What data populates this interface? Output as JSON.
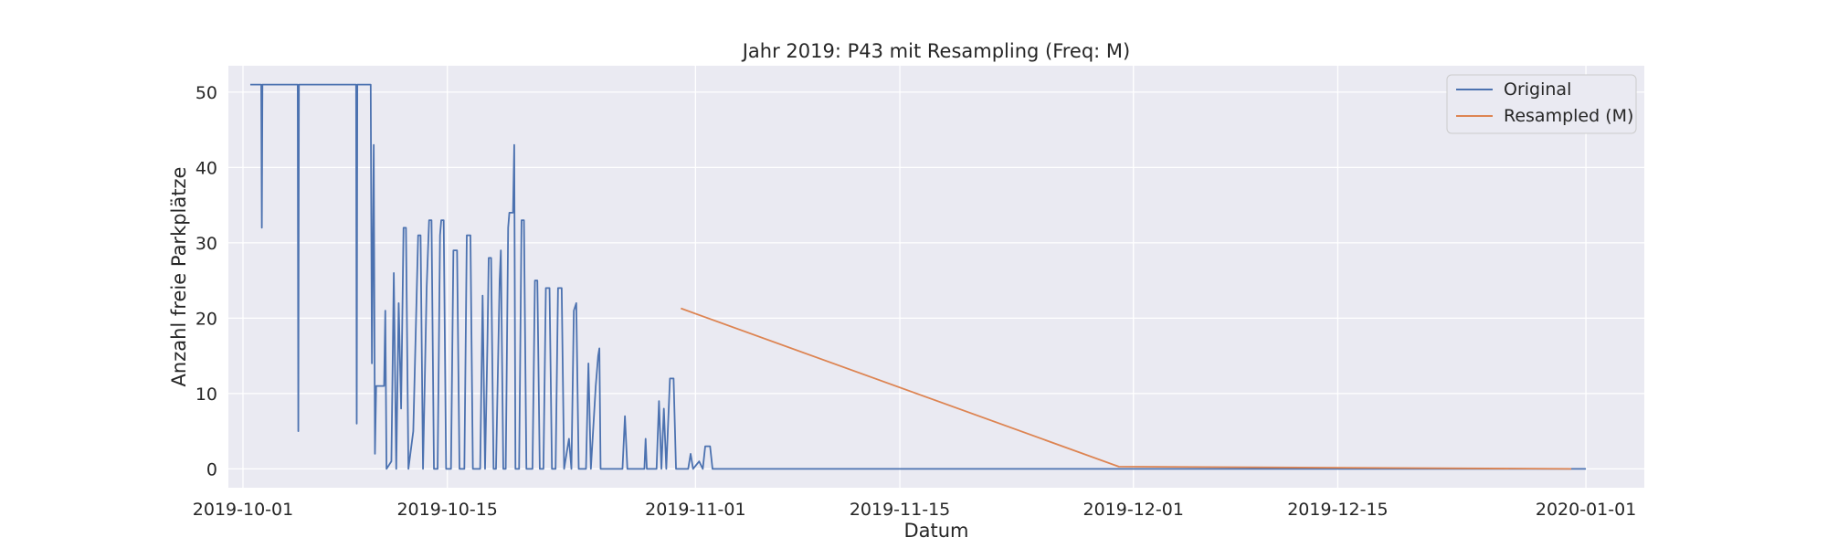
{
  "chart_data": {
    "type": "line",
    "title": "Jahr 2019: P43 mit Resampling (Freq: M)",
    "xlabel": "Datum",
    "ylabel": "Anzahl freie Parkplätze",
    "xlim": [
      "2019-09-30",
      "2020-01-05"
    ],
    "ylim": [
      -2.5,
      53.5
    ],
    "x_ticks": [
      "2019-10-01",
      "2019-10-15",
      "2019-11-01",
      "2019-11-15",
      "2019-12-01",
      "2019-12-15",
      "2020-01-01"
    ],
    "y_ticks": [
      0,
      10,
      20,
      30,
      40,
      50
    ],
    "grid": true,
    "legend_position": "top-right",
    "colors": {
      "background": "#eaeaf2",
      "grid": "#ffffff",
      "original": "#4c72b0",
      "resampled": "#dd8452"
    },
    "series": [
      {
        "name": "Original",
        "points": [
          [
            "2019-10-01 12:00",
            51
          ],
          [
            "2019-10-02 06:00",
            51
          ],
          [
            "2019-10-02 07:00",
            32
          ],
          [
            "2019-10-02 08:00",
            51
          ],
          [
            "2019-10-04 18:00",
            51
          ],
          [
            "2019-10-04 19:00",
            5
          ],
          [
            "2019-10-04 20:00",
            51
          ],
          [
            "2019-10-08 18:00",
            51
          ],
          [
            "2019-10-08 19:00",
            6
          ],
          [
            "2019-10-08 20:00",
            51
          ],
          [
            "2019-10-09 18:00",
            51
          ],
          [
            "2019-10-09 20:00",
            14
          ],
          [
            "2019-10-09 23:00",
            43
          ],
          [
            "2019-10-10 01:00",
            2
          ],
          [
            "2019-10-10 03:00",
            11
          ],
          [
            "2019-10-10 16:00",
            11
          ],
          [
            "2019-10-10 18:00",
            21
          ],
          [
            "2019-10-10 20:00",
            0
          ],
          [
            "2019-10-11 04:00",
            1
          ],
          [
            "2019-10-11 08:00",
            26
          ],
          [
            "2019-10-11 12:00",
            0
          ],
          [
            "2019-10-11 16:00",
            22
          ],
          [
            "2019-10-11 20:00",
            8
          ],
          [
            "2019-10-12 00:00",
            32
          ],
          [
            "2019-10-12 04:00",
            32
          ],
          [
            "2019-10-12 08:00",
            0
          ],
          [
            "2019-10-12 16:00",
            5
          ],
          [
            "2019-10-13 00:00",
            31
          ],
          [
            "2019-10-13 04:00",
            31
          ],
          [
            "2019-10-13 08:00",
            0
          ],
          [
            "2019-10-13 14:00",
            24
          ],
          [
            "2019-10-13 18:00",
            33
          ],
          [
            "2019-10-13 22:00",
            33
          ],
          [
            "2019-10-14 02:00",
            0
          ],
          [
            "2019-10-14 08:00",
            0
          ],
          [
            "2019-10-14 12:00",
            31
          ],
          [
            "2019-10-14 14:00",
            33
          ],
          [
            "2019-10-14 18:00",
            33
          ],
          [
            "2019-10-14 22:00",
            0
          ],
          [
            "2019-10-15 06:00",
            0
          ],
          [
            "2019-10-15 10:00",
            29
          ],
          [
            "2019-10-15 16:00",
            29
          ],
          [
            "2019-10-15 20:00",
            0
          ],
          [
            "2019-10-16 04:00",
            0
          ],
          [
            "2019-10-16 08:00",
            31
          ],
          [
            "2019-10-16 14:00",
            31
          ],
          [
            "2019-10-16 18:00",
            0
          ],
          [
            "2019-10-17 06:00",
            0
          ],
          [
            "2019-10-17 10:00",
            23
          ],
          [
            "2019-10-17 14:00",
            0
          ],
          [
            "2019-10-17 18:00",
            17
          ],
          [
            "2019-10-17 20:00",
            28
          ],
          [
            "2019-10-18 00:00",
            28
          ],
          [
            "2019-10-18 04:00",
            0
          ],
          [
            "2019-10-18 08:00",
            0
          ],
          [
            "2019-10-18 14:00",
            25
          ],
          [
            "2019-10-18 16:00",
            29
          ],
          [
            "2019-10-18 20:00",
            0
          ],
          [
            "2019-10-19 00:00",
            0
          ],
          [
            "2019-10-19 04:00",
            32
          ],
          [
            "2019-10-19 06:00",
            34
          ],
          [
            "2019-10-19 12:00",
            34
          ],
          [
            "2019-10-19 14:00",
            43
          ],
          [
            "2019-10-19 16:00",
            0
          ],
          [
            "2019-10-19 22:00",
            0
          ],
          [
            "2019-10-20 02:00",
            33
          ],
          [
            "2019-10-20 06:00",
            33
          ],
          [
            "2019-10-20 10:00",
            0
          ],
          [
            "2019-10-20 20:00",
            0
          ],
          [
            "2019-10-21 00:00",
            25
          ],
          [
            "2019-10-21 04:00",
            25
          ],
          [
            "2019-10-21 08:00",
            0
          ],
          [
            "2019-10-21 14:00",
            0
          ],
          [
            "2019-10-21 18:00",
            24
          ],
          [
            "2019-10-22 00:00",
            24
          ],
          [
            "2019-10-22 04:00",
            0
          ],
          [
            "2019-10-22 10:00",
            0
          ],
          [
            "2019-10-22 14:00",
            24
          ],
          [
            "2019-10-22 20:00",
            24
          ],
          [
            "2019-10-23 00:00",
            0
          ],
          [
            "2019-10-23 08:00",
            4
          ],
          [
            "2019-10-23 12:00",
            0
          ],
          [
            "2019-10-23 16:00",
            21
          ],
          [
            "2019-10-23 20:00",
            22
          ],
          [
            "2019-10-24 00:00",
            0
          ],
          [
            "2019-10-24 12:00",
            0
          ],
          [
            "2019-10-24 16:00",
            14
          ],
          [
            "2019-10-24 20:00",
            0
          ],
          [
            "2019-10-25 04:00",
            11
          ],
          [
            "2019-10-25 08:00",
            15
          ],
          [
            "2019-10-25 10:00",
            16
          ],
          [
            "2019-10-25 12:00",
            0
          ],
          [
            "2019-10-27 00:00",
            0
          ],
          [
            "2019-10-27 04:00",
            7
          ],
          [
            "2019-10-27 08:00",
            0
          ],
          [
            "2019-10-28 12:00",
            0
          ],
          [
            "2019-10-28 14:00",
            4
          ],
          [
            "2019-10-28 16:00",
            0
          ],
          [
            "2019-10-29 08:00",
            0
          ],
          [
            "2019-10-29 12:00",
            9
          ],
          [
            "2019-10-29 16:00",
            0
          ],
          [
            "2019-10-29 20:00",
            8
          ],
          [
            "2019-10-30 00:00",
            0
          ],
          [
            "2019-10-30 06:00",
            12
          ],
          [
            "2019-10-30 12:00",
            12
          ],
          [
            "2019-10-30 16:00",
            0
          ],
          [
            "2019-10-31 12:00",
            0
          ],
          [
            "2019-10-31 16:00",
            2
          ],
          [
            "2019-10-31 20:00",
            0
          ],
          [
            "2019-11-01 06:00",
            1
          ],
          [
            "2019-11-01 12:00",
            0
          ],
          [
            "2019-11-01 16:00",
            3
          ],
          [
            "2019-11-02 00:00",
            3
          ],
          [
            "2019-11-02 04:00",
            0
          ],
          [
            "2020-01-01 00:00",
            0
          ]
        ]
      },
      {
        "name": "Resampled (M)",
        "points": [
          [
            "2019-10-31",
            21.3
          ],
          [
            "2019-11-30",
            0.3
          ],
          [
            "2019-12-31",
            0.0
          ]
        ]
      }
    ]
  }
}
